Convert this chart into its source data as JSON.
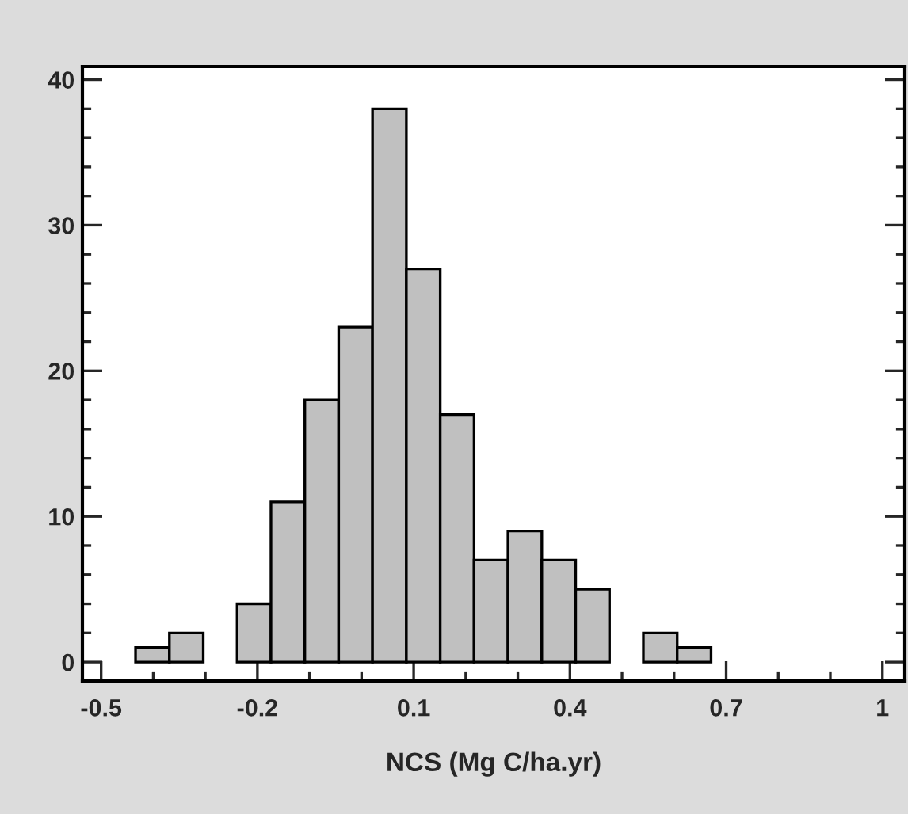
{
  "chart_data": {
    "type": "histogram",
    "xlabel": "NCS (Mg C/ha.yr)",
    "bins": [
      -0.434,
      -0.369,
      -0.304,
      -0.239,
      -0.174,
      -0.109,
      -0.044,
      0.021,
      0.086,
      0.151,
      0.216,
      0.281,
      0.346,
      0.411,
      0.476,
      0.541,
      0.606,
      0.671
    ],
    "values": [
      1,
      2,
      0,
      4,
      11,
      18,
      23,
      38,
      27,
      17,
      7,
      9,
      7,
      5,
      0,
      2,
      1
    ],
    "color": "#c0c0c0",
    "xlim": [
      -0.536,
      1.043
    ],
    "ylim": [
      -1.3,
      40.9
    ],
    "xticks": [
      -0.5,
      {
        "value": -0.4,
        "label": null
      },
      {
        "value": -0.3,
        "label": null
      },
      -0.2,
      {
        "value": -0.1,
        "label": null
      },
      {
        "value": 0,
        "label": null
      },
      0.1,
      {
        "value": 0.2,
        "label": null
      },
      {
        "value": 0.3,
        "label": null
      },
      0.4,
      {
        "value": 0.5,
        "label": null
      },
      {
        "value": 0.6,
        "label": null
      },
      0.7,
      {
        "value": 0.8,
        "label": null
      },
      {
        "value": 0.9,
        "label": null
      },
      1
    ],
    "yticks": [
      0,
      {
        "value": 2,
        "label": null
      },
      {
        "value": 4,
        "label": null
      },
      {
        "value": 6,
        "label": null
      },
      {
        "value": 8,
        "label": null
      },
      10,
      {
        "value": 12,
        "label": null
      },
      {
        "value": 14,
        "label": null
      },
      {
        "value": 16,
        "label": null
      },
      {
        "value": 18,
        "label": null
      },
      20,
      {
        "value": 22,
        "label": null
      },
      {
        "value": 24,
        "label": null
      },
      {
        "value": 26,
        "label": null
      },
      {
        "value": 28,
        "label": null
      },
      30,
      {
        "value": 32,
        "label": null
      },
      {
        "value": 34,
        "label": null
      },
      {
        "value": 36,
        "label": null
      },
      {
        "value": 38,
        "label": null
      },
      40
    ],
    "grid": false,
    "legend": false
  }
}
